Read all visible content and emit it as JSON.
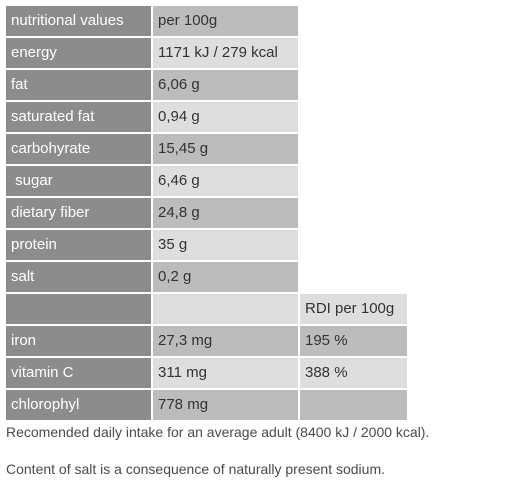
{
  "table": {
    "header": {
      "label": "nutritional values",
      "value": "per 100g"
    },
    "rows": [
      {
        "label": "energy",
        "value": "1171 kJ / 279 kcal"
      },
      {
        "label": "fat",
        "value": "6,06 g"
      },
      {
        "label": "saturated fat",
        "value": "0,94 g"
      },
      {
        "label": "carbohyrate",
        "value": "15,45 g"
      },
      {
        "label": " sugar",
        "value": "6,46 g"
      },
      {
        "label": "dietary fiber",
        "value": "24,8 g"
      },
      {
        "label": "protein",
        "value": "35 g"
      },
      {
        "label": "salt",
        "value": "0,2 g"
      }
    ],
    "rdi_header": "RDI per 100g",
    "rdi_rows": [
      {
        "label": "iron",
        "value": "27,3 mg",
        "rdi": "195 %"
      },
      {
        "label": "vitamin C",
        "value": "311 mg",
        "rdi": "388 %"
      },
      {
        "label": "chlorophyl",
        "value": "778 mg",
        "rdi": ""
      }
    ]
  },
  "notes": {
    "intake": "Recomended daily intake for an average adult (8400 kJ / 2000 kcal).",
    "salt": "Content of salt is a consequence of naturally present sodium."
  }
}
